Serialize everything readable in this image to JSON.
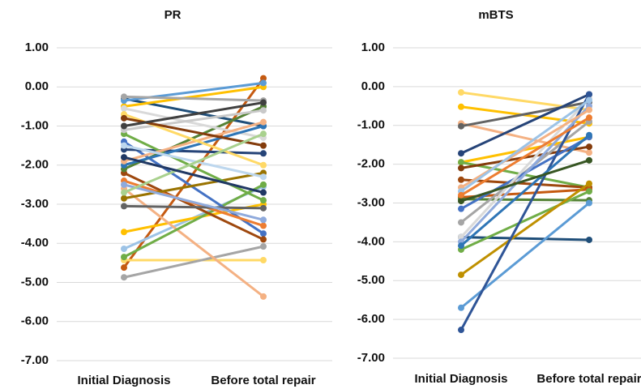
{
  "chart_data": [
    {
      "type": "line",
      "title": "PR",
      "categories": [
        "Initial Diagnosis",
        "Before total repair"
      ],
      "ylim": [
        -7,
        1
      ],
      "yticks": [
        {
          "value": 1,
          "label": "1.00"
        },
        {
          "value": 0,
          "label": "0.00"
        },
        {
          "value": -1,
          "label": "-1.00"
        },
        {
          "value": -2,
          "label": "-2.00"
        },
        {
          "value": -3,
          "label": "-3.00"
        },
        {
          "value": -4,
          "label": "-4.00"
        },
        {
          "value": -5,
          "label": "-5.00"
        },
        {
          "value": -6,
          "label": "-6.00"
        },
        {
          "value": -7,
          "label": "-7.00"
        }
      ],
      "grid": true,
      "series": [
        {
          "color": "#c55a11",
          "values": [
            -4.62,
            0.22
          ]
        },
        {
          "color": "#ffd966",
          "values": [
            -4.43,
            -4.43
          ]
        },
        {
          "color": "#a5a5a5",
          "values": [
            -4.87,
            -4.08
          ]
        },
        {
          "color": "#9dc3e6",
          "values": [
            -4.14,
            -2.55
          ]
        },
        {
          "color": "#ffc000",
          "values": [
            -3.71,
            -3.0
          ]
        },
        {
          "color": "#f4b183",
          "values": [
            -2.6,
            -5.36
          ]
        },
        {
          "color": "#70ad47",
          "values": [
            -4.35,
            -2.5
          ]
        },
        {
          "color": "#1f4e79",
          "values": [
            -0.3,
            -1.0
          ]
        },
        {
          "color": "#4472c4",
          "values": [
            -1.4,
            -3.75
          ]
        },
        {
          "color": "#ffc000",
          "values": [
            -0.5,
            0.0
          ]
        },
        {
          "color": "#5b9bd5",
          "values": [
            -0.35,
            0.1
          ]
        },
        {
          "color": "#a5a5a5",
          "values": [
            -0.25,
            -0.35
          ]
        },
        {
          "color": "#9e480e",
          "values": [
            -2.2,
            -3.9
          ]
        },
        {
          "color": "#548235",
          "values": [
            -2.1,
            -0.5
          ]
        },
        {
          "color": "#264478",
          "values": [
            -1.6,
            -1.7
          ]
        },
        {
          "color": "#ed7d31",
          "values": [
            -2.4,
            -3.55
          ]
        },
        {
          "color": "#636363",
          "values": [
            -3.05,
            -3.1
          ]
        },
        {
          "color": "#997300",
          "values": [
            -2.85,
            -2.2
          ]
        },
        {
          "color": "#70ad47",
          "values": [
            -1.2,
            -2.9
          ]
        },
        {
          "color": "#d9d9d9",
          "values": [
            -0.55,
            -1.3
          ]
        },
        {
          "color": "#2e75b6",
          "values": [
            -2.0,
            -1.0
          ]
        },
        {
          "color": "#f4b183",
          "values": [
            -1.9,
            -0.9
          ]
        },
        {
          "color": "#8faadc",
          "values": [
            -2.5,
            -3.4
          ]
        },
        {
          "color": "#c9c9c9",
          "values": [
            -1.1,
            -0.6
          ]
        },
        {
          "color": "#ffd966",
          "values": [
            -0.7,
            -2.0
          ]
        },
        {
          "color": "#843c0c",
          "values": [
            -0.8,
            -1.5
          ]
        },
        {
          "color": "#404040",
          "values": [
            -1.0,
            -0.4
          ]
        },
        {
          "color": "#bdd7ee",
          "values": [
            -1.5,
            -2.3
          ]
        },
        {
          "color": "#a9d18e",
          "values": [
            -2.7,
            -1.2
          ]
        },
        {
          "color": "#203864",
          "values": [
            -1.8,
            -2.7
          ]
        }
      ]
    },
    {
      "type": "line",
      "title": "mBTS",
      "categories": [
        "Initial Diagnosis",
        "Before total repair"
      ],
      "ylim": [
        -7,
        1
      ],
      "yticks": [
        {
          "value": 1,
          "label": "1.00"
        },
        {
          "value": 0,
          "label": "0.00"
        },
        {
          "value": -1,
          "label": "-1.00"
        },
        {
          "value": -2,
          "label": "-2.00"
        },
        {
          "value": -3,
          "label": "-3.00"
        },
        {
          "value": -4,
          "label": "-4.00"
        },
        {
          "value": -5,
          "label": "-5.00"
        },
        {
          "value": -6,
          "label": "-6.00"
        },
        {
          "value": -7,
          "label": "-7.00"
        }
      ],
      "grid": true,
      "series": [
        {
          "color": "#ffd966",
          "values": [
            -0.15,
            -0.6
          ]
        },
        {
          "color": "#ffc000",
          "values": [
            -0.52,
            -0.95
          ]
        },
        {
          "color": "#f4b183",
          "values": [
            -0.95,
            -1.7
          ]
        },
        {
          "color": "#636363",
          "values": [
            -1.02,
            -0.4
          ]
        },
        {
          "color": "#264478",
          "values": [
            -1.72,
            -0.2
          ]
        },
        {
          "color": "#ffc000",
          "values": [
            -1.95,
            -1.3
          ]
        },
        {
          "color": "#70ad47",
          "values": [
            -1.95,
            -2.6
          ]
        },
        {
          "color": "#843c0c",
          "values": [
            -2.1,
            -1.55
          ]
        },
        {
          "color": "#9e480e",
          "values": [
            -2.4,
            -2.6
          ]
        },
        {
          "color": "#c55a11",
          "values": [
            -2.85,
            -2.65
          ]
        },
        {
          "color": "#548235",
          "values": [
            -2.9,
            -2.93
          ]
        },
        {
          "color": "#a5a5a5",
          "values": [
            -3.5,
            -0.9
          ]
        },
        {
          "color": "#4472c4",
          "values": [
            -3.15,
            -1.3
          ]
        },
        {
          "color": "#1f4e79",
          "values": [
            -3.88,
            -3.95
          ]
        },
        {
          "color": "#d9d9d9",
          "values": [
            -3.88,
            -0.3
          ]
        },
        {
          "color": "#70ad47",
          "values": [
            -4.2,
            -2.7
          ]
        },
        {
          "color": "#bf9000",
          "values": [
            -4.85,
            -2.5
          ]
        },
        {
          "color": "#5b9bd5",
          "values": [
            -5.7,
            -3.0
          ]
        },
        {
          "color": "#2f5597",
          "values": [
            -6.27,
            -0.2
          ]
        },
        {
          "color": "#8faadc",
          "values": [
            -4.0,
            -0.5
          ]
        },
        {
          "color": "#f4b183",
          "values": [
            -2.6,
            -0.6
          ]
        },
        {
          "color": "#9dc3e6",
          "values": [
            -2.7,
            -0.35
          ]
        },
        {
          "color": "#2e75b6",
          "values": [
            -4.1,
            -1.25
          ]
        },
        {
          "color": "#375623",
          "values": [
            -2.95,
            -1.9
          ]
        },
        {
          "color": "#ed7d31",
          "values": [
            -2.8,
            -0.8
          ]
        }
      ]
    }
  ]
}
